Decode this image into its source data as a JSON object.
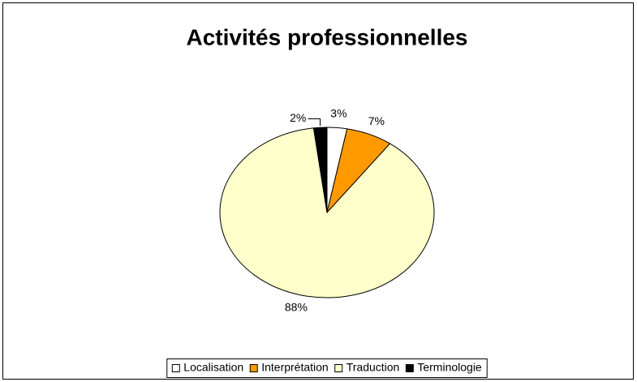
{
  "chart_data": {
    "type": "pie",
    "title": "Activités professionnelles",
    "categories": [
      "Localisation",
      "Interprétation",
      "Traduction",
      "Terminologie"
    ],
    "values": [
      3,
      7,
      88,
      2
    ],
    "value_labels": [
      "3%",
      "7%",
      "88%",
      "2%"
    ],
    "colors": [
      "#ffffff",
      "#ff9900",
      "#ffffcc",
      "#000000"
    ],
    "legend": "bottom"
  }
}
